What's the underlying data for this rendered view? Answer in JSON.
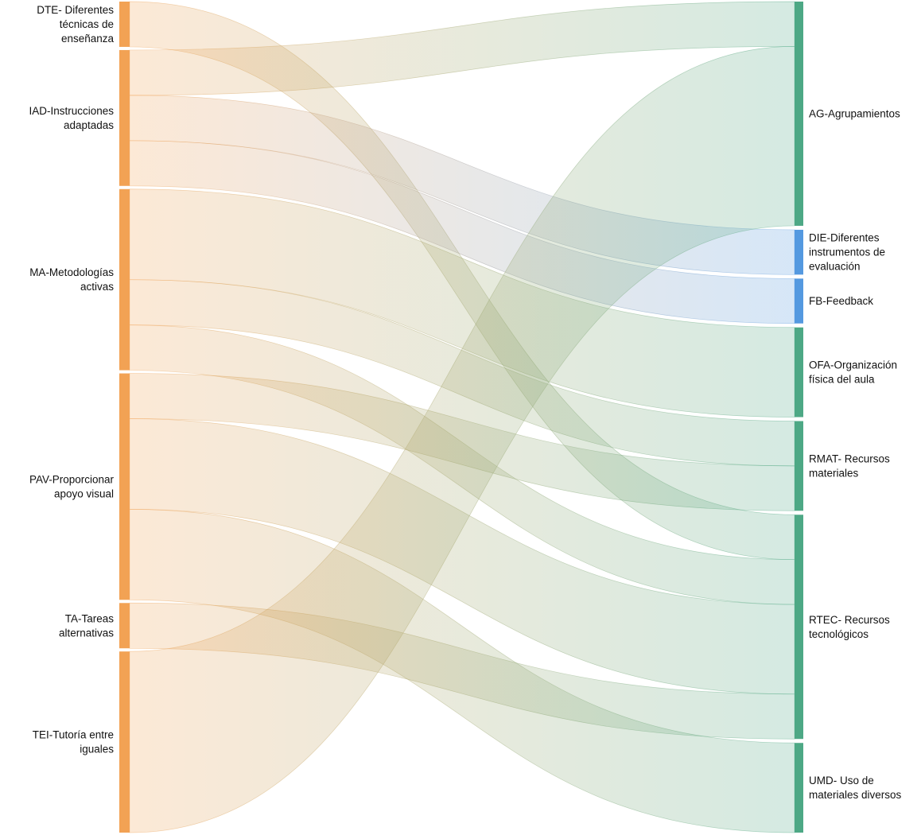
{
  "chart_data": {
    "type": "sankey",
    "title": "",
    "legend_position": "none",
    "grid": false,
    "unit_note": "values are relative band widths (1 unit ≈ 28px)",
    "colors": {
      "source_node": "#F2A254",
      "target_node_green": "#4DA885",
      "target_node_blue": "#5499E0",
      "label": "#111111",
      "background": "#ffffff"
    },
    "nodes": {
      "left": [
        {
          "id": "DTE",
          "label_lines": [
            "DTE- Diferentes",
            "técnicas de",
            "enseñanza"
          ],
          "value": 2,
          "color": "#F2A254"
        },
        {
          "id": "IAD",
          "label_lines": [
            "IAD-Instrucciones",
            "adaptadas"
          ],
          "value": 6,
          "color": "#F2A254"
        },
        {
          "id": "MA",
          "label_lines": [
            "MA-Metodologías",
            "activas"
          ],
          "value": 8,
          "color": "#F2A254"
        },
        {
          "id": "PAV",
          "label_lines": [
            "PAV-Proporcionar",
            "apoyo visual"
          ],
          "value": 10,
          "color": "#F2A254"
        },
        {
          "id": "TA",
          "label_lines": [
            "TA-Tareas",
            "alternativas"
          ],
          "value": 2,
          "color": "#F2A254"
        },
        {
          "id": "TEI",
          "label_lines": [
            "TEI-Tutoría entre",
            "iguales"
          ],
          "value": 8,
          "color": "#F2A254"
        }
      ],
      "right": [
        {
          "id": "AG",
          "label_lines": [
            "AG-Agrupamientos"
          ],
          "value": 10,
          "color": "#4DA885"
        },
        {
          "id": "DIE",
          "label_lines": [
            "DIE-Diferentes",
            "instrumentos de",
            "evaluación"
          ],
          "value": 2,
          "color": "#5499E0"
        },
        {
          "id": "FB",
          "label_lines": [
            "FB-Feedback"
          ],
          "value": 2,
          "color": "#5499E0"
        },
        {
          "id": "OFA",
          "label_lines": [
            "OFA-Organización",
            "física del aula"
          ],
          "value": 4,
          "color": "#4DA885"
        },
        {
          "id": "RMAT",
          "label_lines": [
            "RMAT- Recursos",
            "materiales"
          ],
          "value": 4,
          "color": "#4DA885"
        },
        {
          "id": "RTEC",
          "label_lines": [
            "RTEC- Recursos",
            "tecnológicos"
          ],
          "value": 10,
          "color": "#4DA885"
        },
        {
          "id": "UMD",
          "label_lines": [
            "UMD- Uso de",
            "materiales diversos"
          ],
          "value": 4,
          "color": "#4DA885"
        }
      ]
    },
    "links": [
      {
        "source": "DTE",
        "target": "RTEC",
        "value": 2
      },
      {
        "source": "IAD",
        "target": "AG",
        "value": 2
      },
      {
        "source": "IAD",
        "target": "DIE",
        "value": 2
      },
      {
        "source": "IAD",
        "target": "FB",
        "value": 2
      },
      {
        "source": "MA",
        "target": "OFA",
        "value": 4
      },
      {
        "source": "MA",
        "target": "RMAT",
        "value": 2
      },
      {
        "source": "MA",
        "target": "RTEC",
        "value": 2
      },
      {
        "source": "PAV",
        "target": "RMAT",
        "value": 2
      },
      {
        "source": "PAV",
        "target": "RTEC",
        "value": 4
      },
      {
        "source": "PAV",
        "target": "UMD",
        "value": 4
      },
      {
        "source": "TA",
        "target": "RTEC",
        "value": 2
      },
      {
        "source": "TEI",
        "target": "AG",
        "value": 8
      }
    ]
  }
}
